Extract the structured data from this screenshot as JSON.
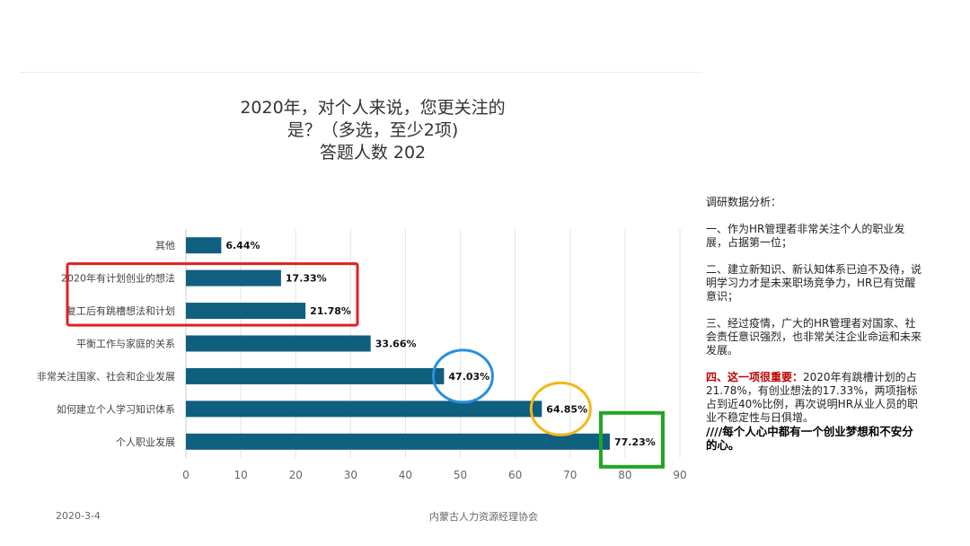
{
  "chart_data": {
    "type": "bar",
    "orientation": "horizontal",
    "title_lines": [
      "2020年，对个人来说，您更关注的",
      "是？（多选，至少2项)",
      "答题人数 202"
    ],
    "categories": [
      "其他",
      "2020年有计划创业的想法",
      "复工后有跳槽想法和计划",
      "平衡工作与家庭的关系",
      "非常关注国家、社会和企业发展",
      "如何建立个人学习知识体系",
      "个人职业发展"
    ],
    "values": [
      6.44,
      17.33,
      21.78,
      33.66,
      47.03,
      64.85,
      77.23
    ],
    "data_labels": [
      "6.44%",
      "17.33%",
      "21.78%",
      "33.66%",
      "47.03%",
      "64.85%",
      "77.23%"
    ],
    "xlim": [
      0,
      90
    ],
    "x_ticks": [
      "0",
      "10",
      "20",
      "30",
      "40",
      "50",
      "60",
      "70",
      "80",
      "90"
    ],
    "grid": true,
    "bar_color": "#0f5f7e",
    "annotations": [
      {
        "type": "rect",
        "color": "#e02020",
        "categories": [
          "2020年有计划创业的想法",
          "复工后有跳槽想法和计划"
        ]
      },
      {
        "type": "circle",
        "color": "#2a8fe0",
        "category": "非常关注国家、社会和企业发展"
      },
      {
        "type": "circle",
        "color": "#f2b718",
        "category": "如何建立个人学习知识体系"
      },
      {
        "type": "rect",
        "color": "#22a522",
        "category": "个人职业发展"
      }
    ]
  },
  "analysis": {
    "heading": "调研数据分析：",
    "p1": "一、作为HR管理者非常关注个人的职业发展，占据第一位；",
    "p2": "二、建立新知识、新认知体系已迫不及待，说明学习力才是未来职场竞争力，HR已有觉醒意识；",
    "p3": "三、经过疫情，广大的HR管理者对国家、社会责任意识强烈，也非常关注企业命运和未来发展。",
    "p4_prefix": "四、",
    "p4_highlight": "这一项很重要：",
    "p4_body": "2020年有跳槽计划的占21.78%，有创业想法的17.33%，两项指标占到近40%比例，再次说明HR从业人员的职业不稳定性与日俱增。",
    "conclusion": "////每个人心中都有一个创业梦想和不安分的心。"
  },
  "footer": {
    "date": "2020-3-4",
    "org": "内蒙古人力资源经理协会"
  }
}
